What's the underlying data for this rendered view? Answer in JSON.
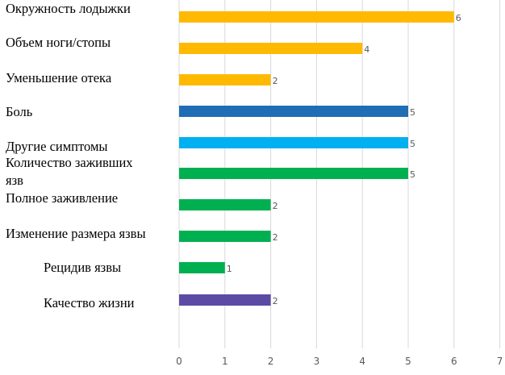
{
  "chart_data": {
    "type": "bar",
    "orientation": "horizontal",
    "categories": [
      "Окружность лодыжки",
      "Объем ноги/стопы",
      "Уменьшение отека",
      "Боль",
      "Другие симптомы",
      "Количество заживших язв",
      "Полное заживление",
      "Изменение размера язвы",
      "Рецидив язвы",
      "Качество жизни"
    ],
    "values": [
      6,
      4,
      2,
      5,
      5,
      5,
      2,
      2,
      1,
      2
    ],
    "colors": [
      "#FFB900",
      "#FFB900",
      "#FFB900",
      "#1F6DB5",
      "#00B0F0",
      "#00B050",
      "#00B050",
      "#00B050",
      "#00B050",
      "#5B4BA5"
    ],
    "xlim": [
      0,
      7
    ],
    "xticks": [
      "0",
      "1",
      "2",
      "3",
      "4",
      "5",
      "6",
      "7"
    ],
    "grid": true,
    "title": "",
    "xlabel": "",
    "ylabel": ""
  }
}
